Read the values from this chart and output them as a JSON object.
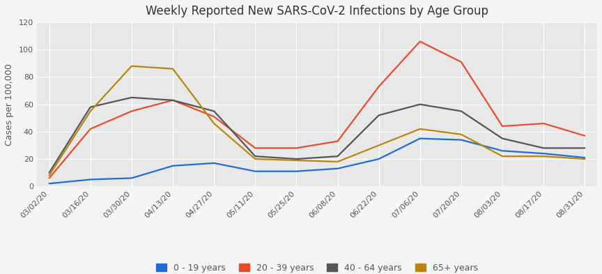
{
  "title": "Weekly Reported New SARS-CoV-2 Infections by Age Group",
  "ylabel": "Cases per 100,000",
  "xlabels": [
    "03/02/20",
    "03/16/20",
    "03/30/20",
    "04/13/20",
    "04/27/20",
    "05/11/20",
    "05/25/20",
    "06/08/20",
    "06/22/20",
    "07/06/20",
    "07/20/20",
    "08/03/20",
    "08/17/20",
    "08/31/20"
  ],
  "series": [
    {
      "label": "0 - 19 years",
      "color": "#1f6dd4",
      "values": [
        2,
        5,
        6,
        15,
        17,
        11,
        11,
        13,
        20,
        35,
        34,
        26,
        24,
        21
      ]
    },
    {
      "label": "20 - 39 years",
      "color": "#e84c2b",
      "values": [
        6,
        42,
        55,
        63,
        51,
        28,
        28,
        33,
        73,
        106,
        91,
        44,
        46,
        37
      ]
    },
    {
      "label": "40 - 64 years",
      "color": "#555555",
      "values": [
        10,
        58,
        65,
        63,
        55,
        22,
        20,
        22,
        52,
        60,
        55,
        35,
        28,
        28
      ]
    },
    {
      "label": "65+ years",
      "color": "#b8860b",
      "values": [
        8,
        55,
        88,
        86,
        46,
        20,
        19,
        18,
        30,
        42,
        38,
        22,
        22,
        20
      ]
    }
  ],
  "ylim": [
    0,
    120
  ],
  "yticks": [
    0,
    20,
    40,
    60,
    80,
    100,
    120
  ],
  "plot_bg_color": "#e8e8e8",
  "fig_bg_color": "#f5f5f5",
  "grid_color": "#ffffff",
  "title_fontsize": 12,
  "tick_fontsize": 8,
  "ylabel_fontsize": 9,
  "legend_fontsize": 9,
  "linewidth": 1.6
}
